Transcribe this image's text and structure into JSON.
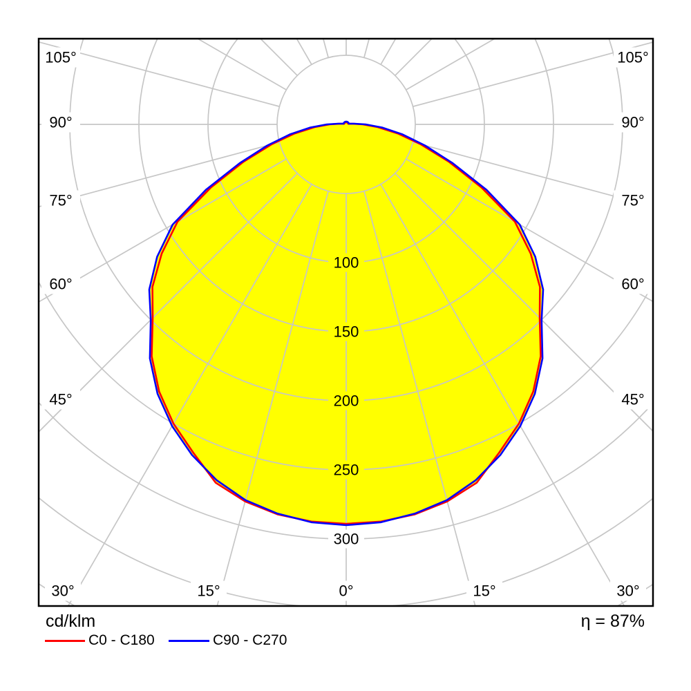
{
  "chart_data": {
    "type": "line",
    "subtype": "polar-photometric-intensity-distribution",
    "units": "cd/klm",
    "gamma_start_deg": 0,
    "gamma_step_deg": 5,
    "gamma_max_deg": 180,
    "series": [
      {
        "name": "C0 - C180",
        "color": "#ff0000",
        "values": [
          289,
          288.5,
          286.5,
          282.5,
          276,
          262,
          250,
          236,
          219,
          198,
          183,
          163,
          141,
          108,
          79,
          56,
          38,
          23,
          12,
          5,
          2.5,
          1.5,
          1.5,
          1.5,
          1.5,
          1.5,
          1.5,
          1.5,
          1.5,
          1.5,
          1.5,
          1.5,
          1.5,
          1.5,
          1.5,
          1.5,
          1.5
        ]
      },
      {
        "name": "C90 - C270",
        "color": "#0000ff",
        "values": [
          290,
          289,
          286,
          281.5,
          274,
          264,
          252,
          238,
          221,
          200,
          186,
          167,
          145,
          112,
          82,
          59,
          41,
          26,
          14,
          6,
          3,
          2,
          2,
          2,
          2,
          2,
          2,
          2,
          2,
          2,
          2,
          2,
          2,
          2,
          2,
          2,
          2
        ]
      }
    ],
    "radial_tick_labels": [
      "100",
      "150",
      "200",
      "250",
      "300"
    ],
    "radial_tick_values": [
      100,
      150,
      200,
      250,
      300
    ],
    "radial_grid_step": 50,
    "radial_grid_max": 400,
    "angle_grid_step_deg": 15,
    "angle_labels_left": [
      "105°",
      "90°",
      "75°",
      "60°",
      "45°"
    ],
    "angle_labels_right": [
      "105°",
      "90°",
      "75°",
      "60°",
      "45°"
    ],
    "angle_labels_bottom": [
      "30°",
      "15°",
      "0°",
      "15°",
      "30°"
    ],
    "fill_color": "#ffff00",
    "grid_color_outside": "#c6c6c6",
    "grid_color_inside_fill": "#b2b2dc",
    "frame_color": "#000000",
    "background": "#ffffff",
    "legend_position": "bottom-left"
  },
  "legend": {
    "unit_label": "cd/klm",
    "items": [
      {
        "label": "C0 - C180",
        "color": "#ff0000"
      },
      {
        "label": "C90 - C270",
        "color": "#0000ff"
      }
    ]
  },
  "footer": {
    "efficiency": "η = 87%"
  }
}
